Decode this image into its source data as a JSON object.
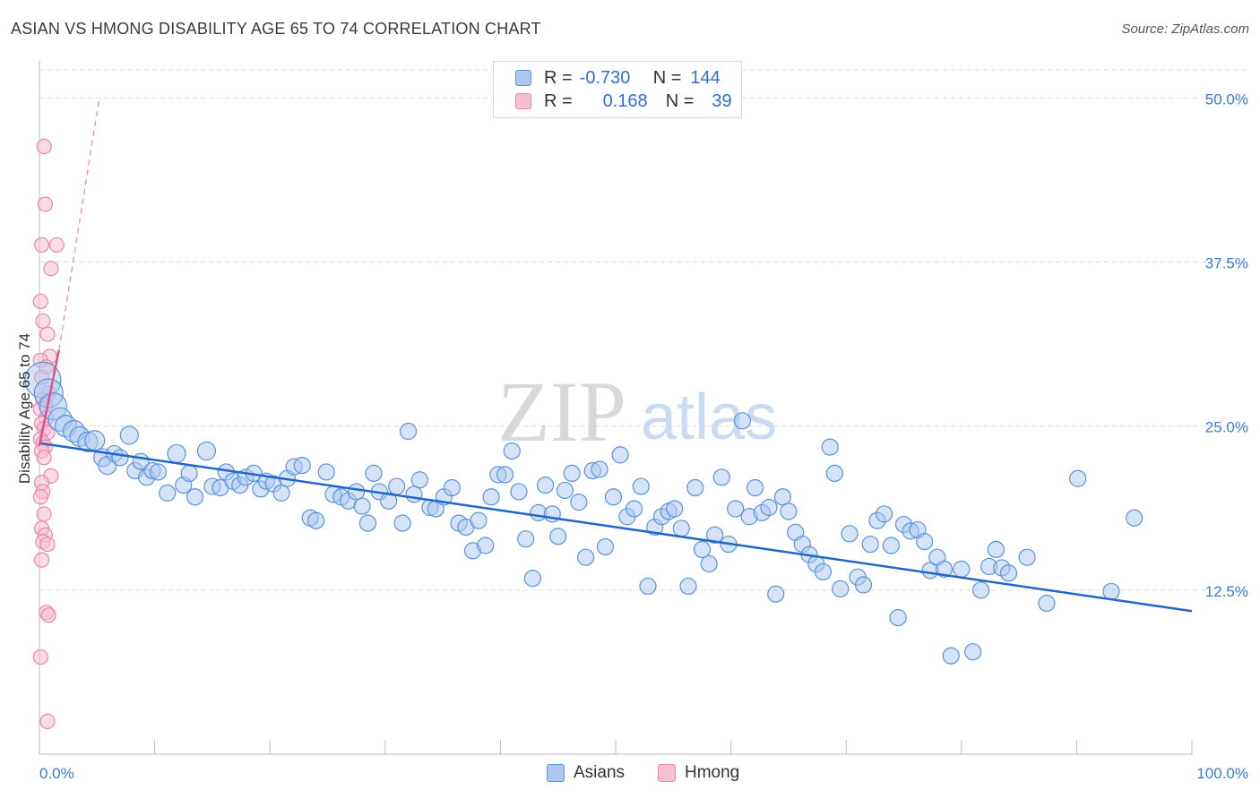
{
  "title": "ASIAN VS HMONG DISABILITY AGE 65 TO 74 CORRELATION CHART",
  "source": "Source: ZipAtlas.com",
  "watermark": {
    "zip": "ZIP",
    "atlas": "atlas"
  },
  "legend": {
    "rows": [
      {
        "r_label": "R =",
        "r_value": "-0.730",
        "n_label": "N =",
        "n_value": "144"
      },
      {
        "r_label": "R =",
        "r_value": "0.168",
        "n_label": "N =",
        "n_value": "39"
      }
    ]
  },
  "bottom_legend": {
    "asians": "Asians",
    "hmong": "Hmong"
  },
  "colors": {
    "asian_fill": "#aac8f0",
    "asian_stroke": "#5b93db",
    "asian_line": "#2266cc",
    "hmong_fill": "#f7bfd0",
    "hmong_stroke": "#e887a8",
    "hmong_line": "#e0508a",
    "axis_text": "#3a7bd5",
    "grid": "#dddddd"
  },
  "chart_data": {
    "type": "scatter",
    "title": "ASIAN VS HMONG DISABILITY AGE 65 TO 74 CORRELATION CHART",
    "xlabel": "",
    "ylabel": "Disability Age 65 to 74",
    "xlim": [
      0,
      100
    ],
    "ylim": [
      0,
      52
    ],
    "x_tick_labels": [
      "0.0%",
      "100.0%"
    ],
    "y_ticks": [
      12.5,
      25.0,
      37.5,
      50.0
    ],
    "y_tick_labels": [
      "12.5%",
      "25.0%",
      "37.5%",
      "50.0%"
    ],
    "grid": true,
    "legend_placement": "top-center",
    "series": [
      {
        "name": "Asians",
        "r": -0.73,
        "n": 144,
        "trend": {
          "x": [
            0,
            100
          ],
          "y": [
            23.7,
            10.9
          ]
        },
        "points": [
          [
            0.3,
            28.5,
            20
          ],
          [
            0.8,
            27.5,
            16
          ],
          [
            1.2,
            26.5,
            15
          ],
          [
            1.8,
            25.5,
            13
          ],
          [
            2.3,
            25.0,
            12
          ],
          [
            3.0,
            24.6,
            12
          ],
          [
            3.5,
            24.2,
            11
          ],
          [
            4.2,
            23.8,
            11
          ],
          [
            4.8,
            23.9,
            11
          ],
          [
            5.5,
            22.6,
            10
          ],
          [
            5.9,
            22.0,
            10
          ],
          [
            6.5,
            22.9,
            9
          ],
          [
            7.0,
            22.6,
            9
          ],
          [
            7.8,
            24.3,
            10
          ],
          [
            8.3,
            21.6,
            9
          ],
          [
            8.8,
            22.3,
            9
          ],
          [
            9.3,
            21.1,
            9
          ],
          [
            9.8,
            21.6,
            9
          ],
          [
            10.3,
            21.5,
            9
          ],
          [
            11.1,
            19.9,
            9
          ],
          [
            11.9,
            22.9,
            10
          ],
          [
            12.5,
            20.5,
            9
          ],
          [
            13.0,
            21.4,
            9
          ],
          [
            13.5,
            19.6,
            9
          ],
          [
            14.5,
            23.1,
            10
          ],
          [
            15.0,
            20.4,
            9
          ],
          [
            15.7,
            20.3,
            9
          ],
          [
            16.2,
            21.5,
            9
          ],
          [
            16.8,
            20.8,
            9
          ],
          [
            17.4,
            20.5,
            9
          ],
          [
            17.9,
            21.1,
            9
          ],
          [
            18.6,
            21.4,
            9
          ],
          [
            19.2,
            20.2,
            9
          ],
          [
            19.7,
            20.8,
            9
          ],
          [
            20.3,
            20.6,
            9
          ],
          [
            21.0,
            19.9,
            9
          ],
          [
            21.5,
            21.0,
            9
          ],
          [
            22.1,
            21.9,
            9
          ],
          [
            22.8,
            22.0,
            9
          ],
          [
            23.5,
            18.0,
            9
          ],
          [
            24.0,
            17.8,
            9
          ],
          [
            24.9,
            21.5,
            9
          ],
          [
            25.5,
            19.8,
            9
          ],
          [
            26.2,
            19.6,
            9
          ],
          [
            26.8,
            19.3,
            9
          ],
          [
            27.5,
            20.0,
            9
          ],
          [
            28.0,
            18.9,
            9
          ],
          [
            28.5,
            17.6,
            9
          ],
          [
            29.0,
            21.4,
            9
          ],
          [
            29.5,
            20.0,
            9
          ],
          [
            30.3,
            19.3,
            9
          ],
          [
            31.0,
            20.4,
            9
          ],
          [
            31.5,
            17.6,
            9
          ],
          [
            32.0,
            24.6,
            9
          ],
          [
            32.5,
            19.8,
            9
          ],
          [
            33.0,
            20.9,
            9
          ],
          [
            33.9,
            18.8,
            9
          ],
          [
            34.4,
            18.7,
            9
          ],
          [
            35.1,
            19.6,
            9
          ],
          [
            35.8,
            20.3,
            9
          ],
          [
            36.4,
            17.6,
            9
          ],
          [
            37.0,
            17.3,
            9
          ],
          [
            37.6,
            15.5,
            9
          ],
          [
            38.1,
            17.8,
            9
          ],
          [
            38.7,
            15.9,
            9
          ],
          [
            39.2,
            19.6,
            9
          ],
          [
            39.8,
            21.3,
            9
          ],
          [
            40.4,
            21.3,
            9
          ],
          [
            41.0,
            23.1,
            9
          ],
          [
            41.6,
            20.0,
            9
          ],
          [
            42.2,
            16.4,
            9
          ],
          [
            42.8,
            13.4,
            9
          ],
          [
            43.3,
            18.4,
            9
          ],
          [
            43.9,
            20.5,
            9
          ],
          [
            44.5,
            18.3,
            9
          ],
          [
            45.0,
            16.6,
            9
          ],
          [
            45.6,
            20.1,
            9
          ],
          [
            46.2,
            21.4,
            9
          ],
          [
            46.8,
            19.2,
            9
          ],
          [
            47.4,
            15.0,
            9
          ],
          [
            48.0,
            21.6,
            9
          ],
          [
            48.6,
            21.7,
            9
          ],
          [
            49.1,
            15.8,
            9
          ],
          [
            49.8,
            19.6,
            9
          ],
          [
            50.4,
            22.8,
            9
          ],
          [
            51.0,
            18.1,
            9
          ],
          [
            51.6,
            18.7,
            9
          ],
          [
            52.2,
            20.4,
            9
          ],
          [
            52.8,
            12.8,
            9
          ],
          [
            53.4,
            17.3,
            9
          ],
          [
            54.0,
            18.1,
            9
          ],
          [
            54.6,
            18.5,
            9
          ],
          [
            55.1,
            18.7,
            9
          ],
          [
            55.7,
            17.2,
            9
          ],
          [
            56.3,
            12.8,
            9
          ],
          [
            56.9,
            20.3,
            9
          ],
          [
            57.5,
            15.6,
            9
          ],
          [
            58.1,
            14.5,
            9
          ],
          [
            58.6,
            16.7,
            9
          ],
          [
            59.2,
            21.1,
            9
          ],
          [
            59.8,
            16.0,
            9
          ],
          [
            60.4,
            18.7,
            9
          ],
          [
            61.0,
            25.4,
            9
          ],
          [
            61.6,
            18.1,
            9
          ],
          [
            62.1,
            20.3,
            9
          ],
          [
            62.7,
            18.4,
            9
          ],
          [
            63.3,
            18.8,
            9
          ],
          [
            63.9,
            12.2,
            9
          ],
          [
            64.5,
            19.6,
            9
          ],
          [
            65.0,
            18.5,
            9
          ],
          [
            65.6,
            16.9,
            9
          ],
          [
            66.2,
            16.0,
            9
          ],
          [
            66.8,
            15.2,
            9
          ],
          [
            67.4,
            14.5,
            9
          ],
          [
            68.0,
            13.9,
            9
          ],
          [
            68.6,
            23.4,
            9
          ],
          [
            69.0,
            21.4,
            9
          ],
          [
            69.5,
            12.6,
            9
          ],
          [
            70.3,
            16.8,
            9
          ],
          [
            71.0,
            13.5,
            9
          ],
          [
            71.5,
            12.9,
            9
          ],
          [
            72.1,
            16.0,
            9
          ],
          [
            72.7,
            17.8,
            9
          ],
          [
            73.3,
            18.3,
            9
          ],
          [
            73.9,
            15.9,
            9
          ],
          [
            74.5,
            10.4,
            9
          ],
          [
            75.0,
            17.5,
            9
          ],
          [
            75.6,
            17.0,
            9
          ],
          [
            76.2,
            17.1,
            9
          ],
          [
            76.8,
            16.2,
            9
          ],
          [
            77.3,
            14.0,
            9
          ],
          [
            77.9,
            15.0,
            9
          ],
          [
            78.5,
            14.1,
            9
          ],
          [
            79.1,
            7.5,
            9
          ],
          [
            80.0,
            14.1,
            9
          ],
          [
            81.0,
            7.8,
            9
          ],
          [
            81.7,
            12.5,
            9
          ],
          [
            82.4,
            14.3,
            9
          ],
          [
            83.0,
            15.6,
            9
          ],
          [
            83.5,
            14.2,
            9
          ],
          [
            84.1,
            13.8,
            9
          ],
          [
            85.7,
            15.0,
            9
          ],
          [
            87.4,
            11.5,
            9
          ],
          [
            90.1,
            21.0,
            9
          ],
          [
            93.0,
            12.4,
            9
          ],
          [
            95.0,
            18.0,
            9
          ]
        ]
      },
      {
        "name": "Hmong",
        "r": 0.168,
        "n": 39,
        "trend": {
          "x": [
            0,
            1.7
          ],
          "y": [
            23.5,
            30.8
          ],
          "dashed_to": {
            "x": 5.2,
            "y": 50.0
          }
        },
        "points": [
          [
            0.4,
            46.3,
            8
          ],
          [
            0.5,
            41.9,
            8
          ],
          [
            0.2,
            38.8,
            8
          ],
          [
            1.5,
            38.8,
            8
          ],
          [
            1.0,
            37.0,
            8
          ],
          [
            0.1,
            34.5,
            8
          ],
          [
            0.3,
            33.0,
            8
          ],
          [
            0.7,
            32.0,
            8
          ],
          [
            0.9,
            30.3,
            8
          ],
          [
            0.1,
            30.0,
            8
          ],
          [
            0.6,
            29.5,
            8
          ],
          [
            0.2,
            28.7,
            8
          ],
          [
            0.8,
            27.5,
            8
          ],
          [
            0.3,
            27.0,
            8
          ],
          [
            0.5,
            26.6,
            8
          ],
          [
            0.1,
            26.3,
            8
          ],
          [
            0.6,
            25.6,
            8
          ],
          [
            0.2,
            25.2,
            8
          ],
          [
            0.4,
            24.8,
            8
          ],
          [
            0.7,
            24.5,
            8
          ],
          [
            0.1,
            24.0,
            8
          ],
          [
            0.3,
            23.7,
            8
          ],
          [
            0.5,
            23.4,
            8
          ],
          [
            0.2,
            23.1,
            8
          ],
          [
            1.0,
            21.2,
            8
          ],
          [
            0.2,
            20.7,
            8
          ],
          [
            0.3,
            20.0,
            8
          ],
          [
            0.1,
            19.6,
            8
          ],
          [
            0.4,
            18.3,
            8
          ],
          [
            0.2,
            17.2,
            8
          ],
          [
            0.5,
            16.7,
            8
          ],
          [
            0.3,
            16.2,
            8
          ],
          [
            0.7,
            16.0,
            8
          ],
          [
            0.2,
            14.8,
            8
          ],
          [
            0.6,
            10.8,
            8
          ],
          [
            0.8,
            10.6,
            8
          ],
          [
            0.1,
            7.4,
            8
          ],
          [
            0.7,
            2.5,
            8
          ],
          [
            0.4,
            22.6,
            8
          ]
        ]
      }
    ]
  }
}
